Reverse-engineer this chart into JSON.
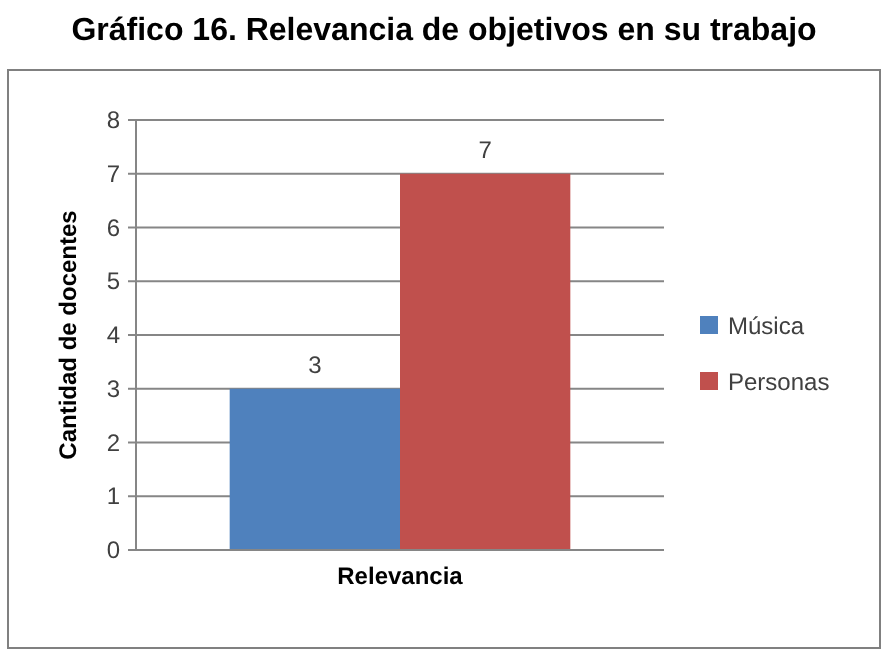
{
  "chart_data": {
    "type": "bar",
    "title": "Gráfico 16. Relevancia de objetivos en su trabajo",
    "xlabel": "Relevancia",
    "ylabel": "Cantidad de docentes",
    "categories": [
      null
    ],
    "series": [
      {
        "name": "Música",
        "color": "#4f81bd",
        "values": [
          3
        ]
      },
      {
        "name": "Personas",
        "color": "#c0504d",
        "values": [
          7
        ]
      }
    ],
    "ylim": [
      0,
      8
    ],
    "yticks": [
      0,
      1,
      2,
      3,
      4,
      5,
      6,
      7,
      8
    ],
    "grid": "y",
    "legend": "right",
    "data_labels": true
  }
}
